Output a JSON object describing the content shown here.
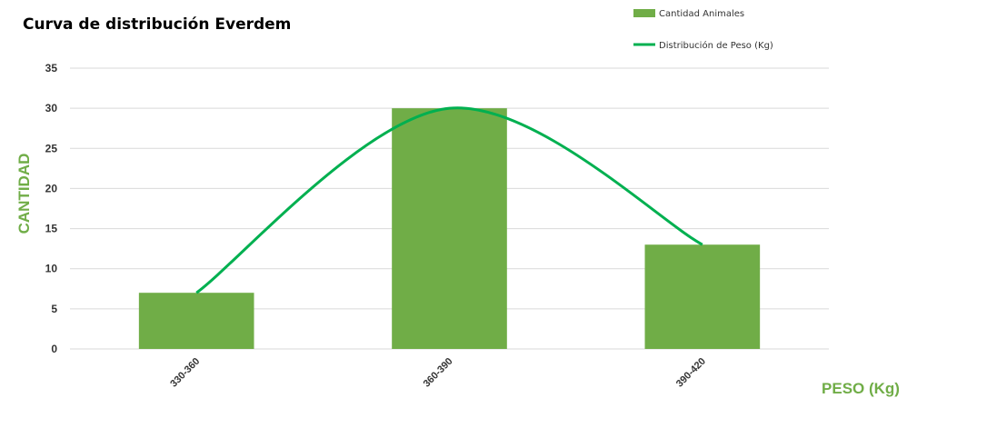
{
  "colors": {
    "bar": "#70ad47",
    "line": "#00b050",
    "axis_label": "#70ad47",
    "grid": "#d9d9d9"
  },
  "chart_data": {
    "type": "bar",
    "title": "Curva de distribución Everdem",
    "xlabel": "PESO (Kg)",
    "ylabel": "CANTIDAD",
    "categories": [
      "330-360",
      "360-390",
      "390-420"
    ],
    "series": [
      {
        "name": "Cantidad Animales",
        "type": "bar",
        "values": [
          7,
          30,
          13
        ]
      },
      {
        "name": "Distribución de Peso (Kg)",
        "type": "line",
        "smooth": true,
        "values": [
          7,
          30,
          13
        ]
      }
    ],
    "ylim": [
      0,
      35
    ],
    "yticks": [
      0,
      5,
      10,
      15,
      20,
      25,
      30,
      35
    ],
    "grid": true,
    "legend_position": "top-right"
  }
}
